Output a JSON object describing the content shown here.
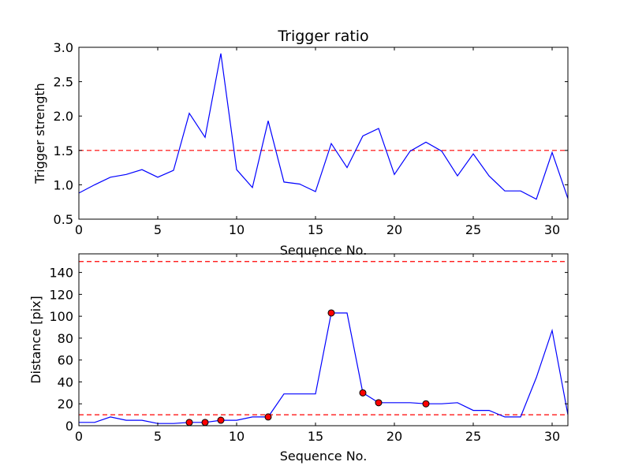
{
  "chart_data": [
    {
      "type": "line",
      "title": "Trigger ratio",
      "xlabel": "Sequence No.",
      "ylabel": "Trigger strength",
      "xlim": [
        0,
        31
      ],
      "ylim": [
        0.5,
        3.0
      ],
      "xticks": [
        0,
        5,
        10,
        15,
        20,
        25,
        30
      ],
      "yticks": [
        0.5,
        1.0,
        1.5,
        2.0,
        2.5,
        3.0
      ],
      "ytick_labels": [
        "0.5",
        "1.0",
        "1.5",
        "2.0",
        "2.5",
        "3.0"
      ],
      "grid": false,
      "series": [
        {
          "color": "#0000ff",
          "x": [
            0,
            1,
            2,
            3,
            4,
            5,
            6,
            7,
            8,
            9,
            10,
            11,
            12,
            13,
            14,
            15,
            16,
            17,
            18,
            19,
            20,
            21,
            22,
            23,
            24,
            25,
            26,
            27,
            28,
            29,
            30,
            31
          ],
          "values": [
            0.88,
            1.0,
            1.11,
            1.15,
            1.22,
            1.11,
            1.21,
            2.04,
            1.69,
            2.91,
            1.22,
            0.96,
            1.93,
            1.04,
            1.01,
            0.9,
            1.6,
            1.25,
            1.71,
            1.82,
            1.15,
            1.49,
            1.62,
            1.49,
            1.13,
            1.45,
            1.13,
            0.91,
            0.91,
            0.79,
            1.47,
            0.8
          ]
        }
      ],
      "hlines": [
        {
          "y": 1.5,
          "color": "#ff0000",
          "style": "dashed"
        }
      ]
    },
    {
      "type": "line",
      "title": "",
      "xlabel": "Sequence No.",
      "ylabel": "Distance [pix]",
      "xlim": [
        0,
        31
      ],
      "ylim": [
        0,
        157
      ],
      "xticks": [
        0,
        5,
        10,
        15,
        20,
        25,
        30
      ],
      "yticks": [
        0,
        20,
        40,
        60,
        80,
        100,
        120,
        140
      ],
      "ytick_labels": [
        "0",
        "20",
        "40",
        "60",
        "80",
        "100",
        "120",
        "140"
      ],
      "grid": false,
      "series": [
        {
          "color": "#0000ff",
          "x": [
            0,
            1,
            2,
            3,
            4,
            5,
            6,
            7,
            8,
            9,
            10,
            11,
            12,
            13,
            14,
            15,
            16,
            17,
            18,
            19,
            20,
            21,
            22,
            23,
            24,
            25,
            26,
            27,
            28,
            29,
            30,
            31
          ],
          "values": [
            3,
            3,
            8,
            5,
            5,
            2,
            2,
            3,
            3,
            5,
            5,
            8,
            8,
            29,
            29,
            29,
            103,
            103,
            30,
            21,
            21,
            21,
            20,
            20,
            21,
            14,
            14,
            8,
            8,
            44,
            87,
            10
          ]
        }
      ],
      "markers": {
        "color": "#ff0000",
        "x": [
          7,
          8,
          9,
          12,
          16,
          18,
          19,
          22
        ],
        "values": [
          3,
          3,
          5,
          8,
          103,
          30,
          21,
          20
        ]
      },
      "hlines": [
        {
          "y": 150,
          "color": "#ff0000",
          "style": "dashed"
        },
        {
          "y": 10,
          "color": "#ff0000",
          "style": "dashed"
        }
      ]
    }
  ]
}
